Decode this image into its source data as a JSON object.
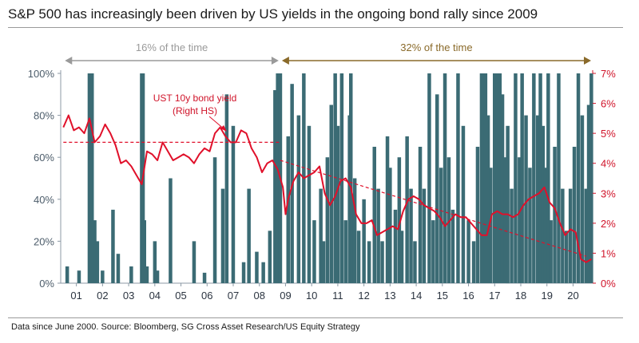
{
  "title": "S&P 500 has increasingly been driven by US yields in the ongoing bond rally since 2009",
  "footer": "Data since June 2000. Source: Bloomberg, SG Cross Asset Research/US Equity Strategy",
  "colors": {
    "bars": "#3b6b74",
    "yield_line": "#e0102a",
    "trend": "#e0102a",
    "period1_arrow": "#9a9a9a",
    "period2_arrow": "#8a6a2a",
    "left_axis": "#4d5d6b",
    "right_axis": "#d0142a"
  },
  "periods": [
    {
      "label": "16% of the time",
      "x_range": [
        2000.5,
        2008.8
      ]
    },
    {
      "label": "32% of the time",
      "x_range": [
        2008.8,
        2020.75
      ]
    }
  ],
  "annotation": {
    "line1": "UST 10y bond yield",
    "line2": "(Right HS)"
  },
  "chart_data": {
    "type": "bar",
    "xlim": [
      2000.4,
      2020.75
    ],
    "x_ticks": [
      "01",
      "02",
      "03",
      "04",
      "05",
      "06",
      "07",
      "08",
      "09",
      "10",
      "11",
      "12",
      "13",
      "14",
      "15",
      "16",
      "17",
      "18",
      "19",
      "20"
    ],
    "left_axis": {
      "ylim": [
        0,
        100
      ],
      "ticks": [
        "0%",
        "20%",
        "40%",
        "60%",
        "80%",
        "100%"
      ]
    },
    "right_axis": {
      "ylim": [
        0,
        7
      ],
      "ticks": [
        "0%",
        "1%",
        "2%",
        "3%",
        "4%",
        "5%",
        "6%",
        "7%"
      ]
    },
    "series": [
      {
        "name": "",
        "type": "bar",
        "axis": "left",
        "x": [
          2000.65,
          2001.1,
          2001.5,
          2001.55,
          2001.6,
          2001.7,
          2001.8,
          2002.0,
          2002.4,
          2002.6,
          2003.1,
          2003.5,
          2003.55,
          2003.6,
          2003.7,
          2004.0,
          2004.1,
          2004.6,
          2005.5,
          2005.9,
          2006.3,
          2006.6,
          2006.75,
          2007.0,
          2007.4,
          2007.6,
          2007.9,
          2008.15,
          2008.4,
          2008.6,
          2008.7,
          2008.8,
          2009.1,
          2009.25,
          2009.5,
          2009.7,
          2009.9,
          2010.1,
          2010.35,
          2010.45,
          2010.6,
          2010.75,
          2010.9,
          2011.0,
          2011.15,
          2011.3,
          2011.45,
          2011.5,
          2011.55,
          2011.65,
          2011.8,
          2012.0,
          2012.2,
          2012.4,
          2012.55,
          2012.7,
          2012.9,
          2013.0,
          2013.2,
          2013.35,
          2013.45,
          2013.65,
          2013.8,
          2013.95,
          2014.15,
          2014.3,
          2014.5,
          2014.65,
          2014.8,
          2014.95,
          2015.1,
          2015.25,
          2015.4,
          2015.6,
          2015.8,
          2016.0,
          2016.2,
          2016.35,
          2016.5,
          2016.6,
          2016.65,
          2016.75,
          2016.85,
          2017.0,
          2017.1,
          2017.2,
          2017.3,
          2017.4,
          2017.5,
          2017.65,
          2017.8,
          2017.95,
          2018.05,
          2018.2,
          2018.35,
          2018.5,
          2018.65,
          2018.75,
          2018.85,
          2018.95,
          2019.05,
          2019.15,
          2019.3,
          2019.45,
          2019.6,
          2019.75,
          2019.9,
          2020.05,
          2020.2,
          2020.35,
          2020.5,
          2020.6,
          2020.7
        ],
        "values": [
          8,
          6,
          100,
          100,
          100,
          30,
          20,
          6,
          35,
          14,
          8,
          100,
          100,
          30,
          8,
          20,
          6,
          50,
          20,
          5,
          60,
          45,
          90,
          75,
          10,
          45,
          15,
          10,
          25,
          92,
          100,
          100,
          70,
          95,
          80,
          100,
          75,
          30,
          45,
          20,
          60,
          85,
          100,
          75,
          100,
          30,
          80,
          100,
          40,
          50,
          25,
          40,
          20,
          65,
          45,
          20,
          70,
          55,
          35,
          60,
          25,
          70,
          45,
          20,
          65,
          45,
          100,
          30,
          90,
          55,
          100,
          60,
          35,
          100,
          75,
          30,
          20,
          65,
          100,
          100,
          100,
          80,
          55,
          100,
          100,
          100,
          90,
          60,
          75,
          45,
          100,
          60,
          100,
          80,
          55,
          100,
          80,
          100,
          75,
          55,
          100,
          30,
          65,
          100,
          45,
          25,
          45,
          65,
          100,
          80,
          45,
          85,
          100
        ]
      },
      {
        "name": "UST 10y bond yield (Right HS)",
        "type": "line",
        "axis": "right",
        "x": [
          2000.5,
          2000.7,
          2000.9,
          2001.1,
          2001.3,
          2001.5,
          2001.7,
          2001.9,
          2002.1,
          2002.3,
          2002.5,
          2002.7,
          2002.9,
          2003.1,
          2003.3,
          2003.5,
          2003.7,
          2003.9,
          2004.1,
          2004.3,
          2004.5,
          2004.7,
          2004.9,
          2005.1,
          2005.3,
          2005.5,
          2005.7,
          2005.9,
          2006.1,
          2006.3,
          2006.5,
          2006.7,
          2006.9,
          2007.1,
          2007.3,
          2007.5,
          2007.7,
          2007.9,
          2008.1,
          2008.3,
          2008.5,
          2008.7,
          2008.9,
          2009.0,
          2009.1,
          2009.3,
          2009.5,
          2009.7,
          2009.9,
          2010.1,
          2010.3,
          2010.5,
          2010.7,
          2010.9,
          2011.1,
          2011.3,
          2011.5,
          2011.7,
          2011.9,
          2012.1,
          2012.3,
          2012.5,
          2012.7,
          2012.9,
          2013.1,
          2013.3,
          2013.5,
          2013.7,
          2013.9,
          2014.1,
          2014.3,
          2014.5,
          2014.7,
          2014.9,
          2015.1,
          2015.3,
          2015.5,
          2015.7,
          2015.9,
          2016.1,
          2016.3,
          2016.5,
          2016.7,
          2016.9,
          2017.1,
          2017.3,
          2017.5,
          2017.7,
          2017.9,
          2018.1,
          2018.3,
          2018.5,
          2018.7,
          2018.9,
          2019.1,
          2019.3,
          2019.5,
          2019.7,
          2019.9,
          2020.1,
          2020.3,
          2020.5,
          2020.7
        ],
        "values": [
          5.2,
          5.6,
          5.1,
          5.2,
          5.0,
          5.5,
          4.7,
          4.9,
          5.3,
          5.0,
          4.6,
          4.0,
          4.1,
          3.9,
          3.6,
          3.3,
          4.4,
          4.3,
          4.1,
          4.7,
          4.4,
          4.1,
          4.2,
          4.3,
          4.2,
          4.0,
          4.3,
          4.5,
          4.4,
          5.0,
          5.2,
          4.9,
          4.7,
          4.7,
          5.1,
          5.0,
          4.5,
          4.2,
          3.7,
          4.0,
          4.1,
          3.8,
          3.2,
          2.3,
          2.8,
          3.4,
          3.7,
          3.5,
          3.6,
          3.7,
          3.9,
          3.0,
          2.6,
          2.9,
          3.4,
          3.5,
          3.2,
          2.3,
          2.0,
          2.0,
          2.1,
          1.6,
          1.7,
          1.8,
          1.9,
          1.8,
          2.4,
          2.8,
          2.9,
          2.8,
          2.6,
          2.5,
          2.4,
          2.2,
          1.9,
          2.1,
          2.3,
          2.2,
          2.2,
          2.0,
          1.8,
          1.6,
          1.6,
          2.3,
          2.4,
          2.3,
          2.3,
          2.2,
          2.3,
          2.6,
          2.8,
          2.9,
          3.0,
          3.2,
          2.7,
          2.5,
          2.0,
          1.6,
          1.8,
          1.7,
          0.8,
          0.7,
          0.8
        ]
      },
      {
        "name": "",
        "type": "dashed-trend",
        "axis": "right",
        "x": [
          2000.5,
          2008.8
        ],
        "values": [
          4.7,
          4.7
        ]
      },
      {
        "name": "",
        "type": "dashed-trend",
        "axis": "right",
        "x": [
          2008.8,
          2020.5
        ],
        "values": [
          4.1,
          0.9
        ]
      }
    ]
  }
}
